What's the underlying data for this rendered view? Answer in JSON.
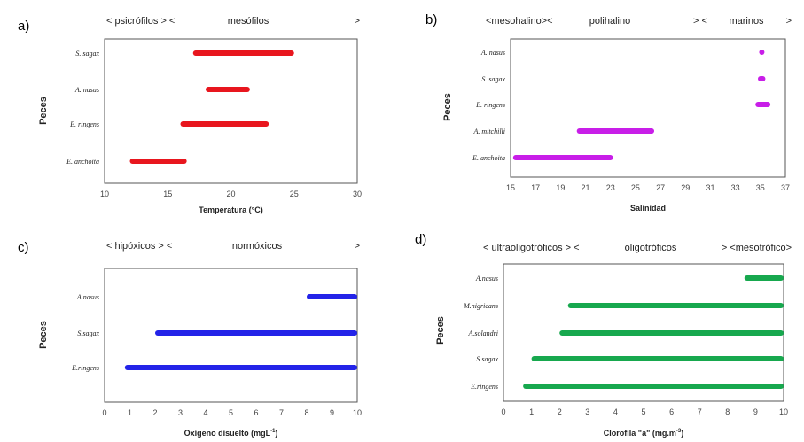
{
  "chart_data": [
    {
      "type": "bar",
      "panel": "a)",
      "zones": [
        "< psicrófilos > <",
        "mesófilos",
        ">"
      ],
      "xlabel": "Temperatura (°C)",
      "ylabel": "Peces",
      "xlim": [
        10,
        30
      ],
      "xticks": [
        10,
        15,
        20,
        25,
        30
      ],
      "color": "#e8161e",
      "ranges": [
        {
          "name": "S. sagax",
          "min": 17,
          "max": 25
        },
        {
          "name": "A. nasus",
          "min": 18,
          "max": 21.5
        },
        {
          "name": "E. ringens",
          "min": 16,
          "max": 23
        },
        {
          "name": "E. anchoita",
          "min": 12,
          "max": 16.5
        }
      ]
    },
    {
      "type": "bar",
      "panel": "b)",
      "zones": [
        "<mesohalino><",
        "polihalino",
        "> <",
        "marinos",
        ">"
      ],
      "xlabel": "Salinidad",
      "ylabel": "Peces",
      "xlim": [
        15,
        37
      ],
      "xticks": [
        15,
        17,
        19,
        21,
        23,
        25,
        27,
        29,
        31,
        33,
        35,
        37
      ],
      "color": "#c81ee8",
      "ranges": [
        {
          "name": "A. nasus",
          "min": 34.9,
          "max": 35.2
        },
        {
          "name": "S. sagax",
          "min": 34.8,
          "max": 35.4
        },
        {
          "name": "E. ringens",
          "min": 34.6,
          "max": 35.8
        },
        {
          "name": "A. mitchilli",
          "min": 20.3,
          "max": 26.5
        },
        {
          "name": "E. anchoita",
          "min": 15.2,
          "max": 23.2
        }
      ]
    },
    {
      "type": "bar",
      "panel": "c)",
      "zones": [
        "< hipóxicos > <",
        "normóxicos",
        ">"
      ],
      "xlabel": "Oxígeno disuelto (mgL",
      "xlabel_sup": "-1",
      "xlabel_end": ")",
      "ylabel": "Peces",
      "xlim": [
        0,
        10
      ],
      "xticks": [
        0,
        1,
        2,
        3,
        4,
        5,
        6,
        7,
        8,
        9,
        10
      ],
      "color": "#2323e8",
      "ranges": [
        {
          "name": "A.nasus",
          "min": 8,
          "max": 10
        },
        {
          "name": "S.sagax",
          "min": 2,
          "max": 10
        },
        {
          "name": "E.ringens",
          "min": 0.8,
          "max": 10
        }
      ]
    },
    {
      "type": "bar",
      "panel": "d)",
      "zones": [
        "< ultraoligotróficos > <",
        "oligotróficos",
        "> <mesotrófico>"
      ],
      "xlabel": "Clorofila \"a\" (mg.m",
      "xlabel_sup": "-3",
      "xlabel_end": ")",
      "ylabel": "Peces",
      "xlim": [
        0,
        10
      ],
      "xticks": [
        0,
        1,
        2,
        3,
        4,
        5,
        6,
        7,
        8,
        9,
        10
      ],
      "color": "#17a84e",
      "ranges": [
        {
          "name": "A.nasus",
          "min": 8.6,
          "max": 10
        },
        {
          "name": "M.nigricans",
          "min": 2.3,
          "max": 10
        },
        {
          "name": "A.solandri",
          "min": 2,
          "max": 10
        },
        {
          "name": "S.sagax",
          "min": 1,
          "max": 10
        },
        {
          "name": "E.ringens",
          "min": 0.7,
          "max": 10
        }
      ]
    }
  ]
}
